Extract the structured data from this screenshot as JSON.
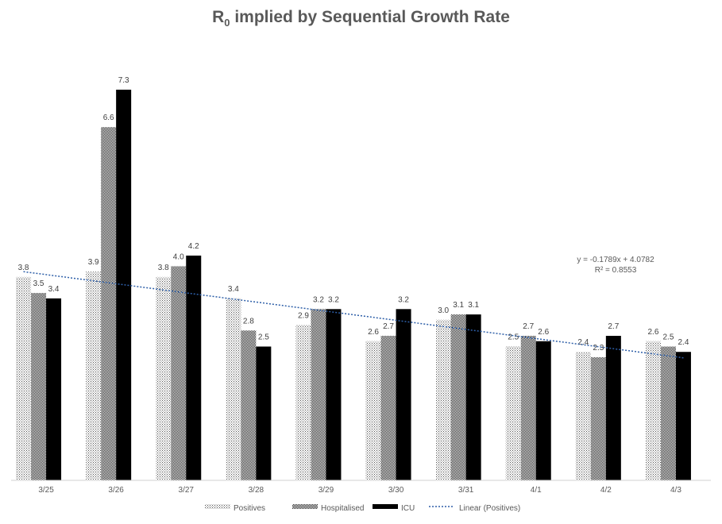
{
  "chart_data": {
    "type": "bar",
    "title_main": "R",
    "title_sub": "0",
    "title_rest": " implied by Sequential Growth Rate",
    "categories": [
      "3/25",
      "3/26",
      "3/27",
      "3/28",
      "3/29",
      "3/30",
      "3/31",
      "4/1",
      "4/2",
      "4/3"
    ],
    "series": [
      {
        "name": "Positives",
        "values": [
          3.8,
          3.9,
          3.8,
          3.4,
          2.9,
          2.6,
          3.0,
          2.5,
          2.4,
          2.6
        ],
        "labels": [
          "3.8",
          "3.9",
          "3.8",
          "3.4",
          "2.9",
          "2.6",
          "3.0",
          "2.5",
          "2.4",
          "2.6"
        ],
        "pattern": "dots"
      },
      {
        "name": "Hospitalised",
        "values": [
          3.5,
          6.6,
          4.0,
          2.8,
          3.2,
          2.7,
          3.1,
          2.7,
          2.3,
          2.5
        ],
        "labels": [
          "3.5",
          "6.6",
          "4.0",
          "2.8",
          "3.2",
          "2.7",
          "3.1",
          "2.7",
          "2.3",
          "2.5"
        ],
        "pattern": "checker"
      },
      {
        "name": "ICU",
        "values": [
          3.4,
          7.3,
          4.2,
          2.5,
          3.2,
          3.2,
          3.1,
          2.6,
          2.7,
          2.4
        ],
        "labels": [
          "3.4",
          "7.3",
          "4.2",
          "2.5",
          "3.2",
          "3.2",
          "3.1",
          "2.6",
          "2.7",
          "2.4"
        ],
        "color": "#000000"
      }
    ],
    "trendline": {
      "name": "Linear (Positives)",
      "slope": -0.1789,
      "intercept": 4.0782,
      "equation": "y = -0.1789x + 4.0782",
      "r2": "R² = 0.8553",
      "color": "#2e5fa8"
    },
    "ylim": [
      0,
      7.7
    ],
    "grid": false,
    "legend_position": "bottom"
  }
}
